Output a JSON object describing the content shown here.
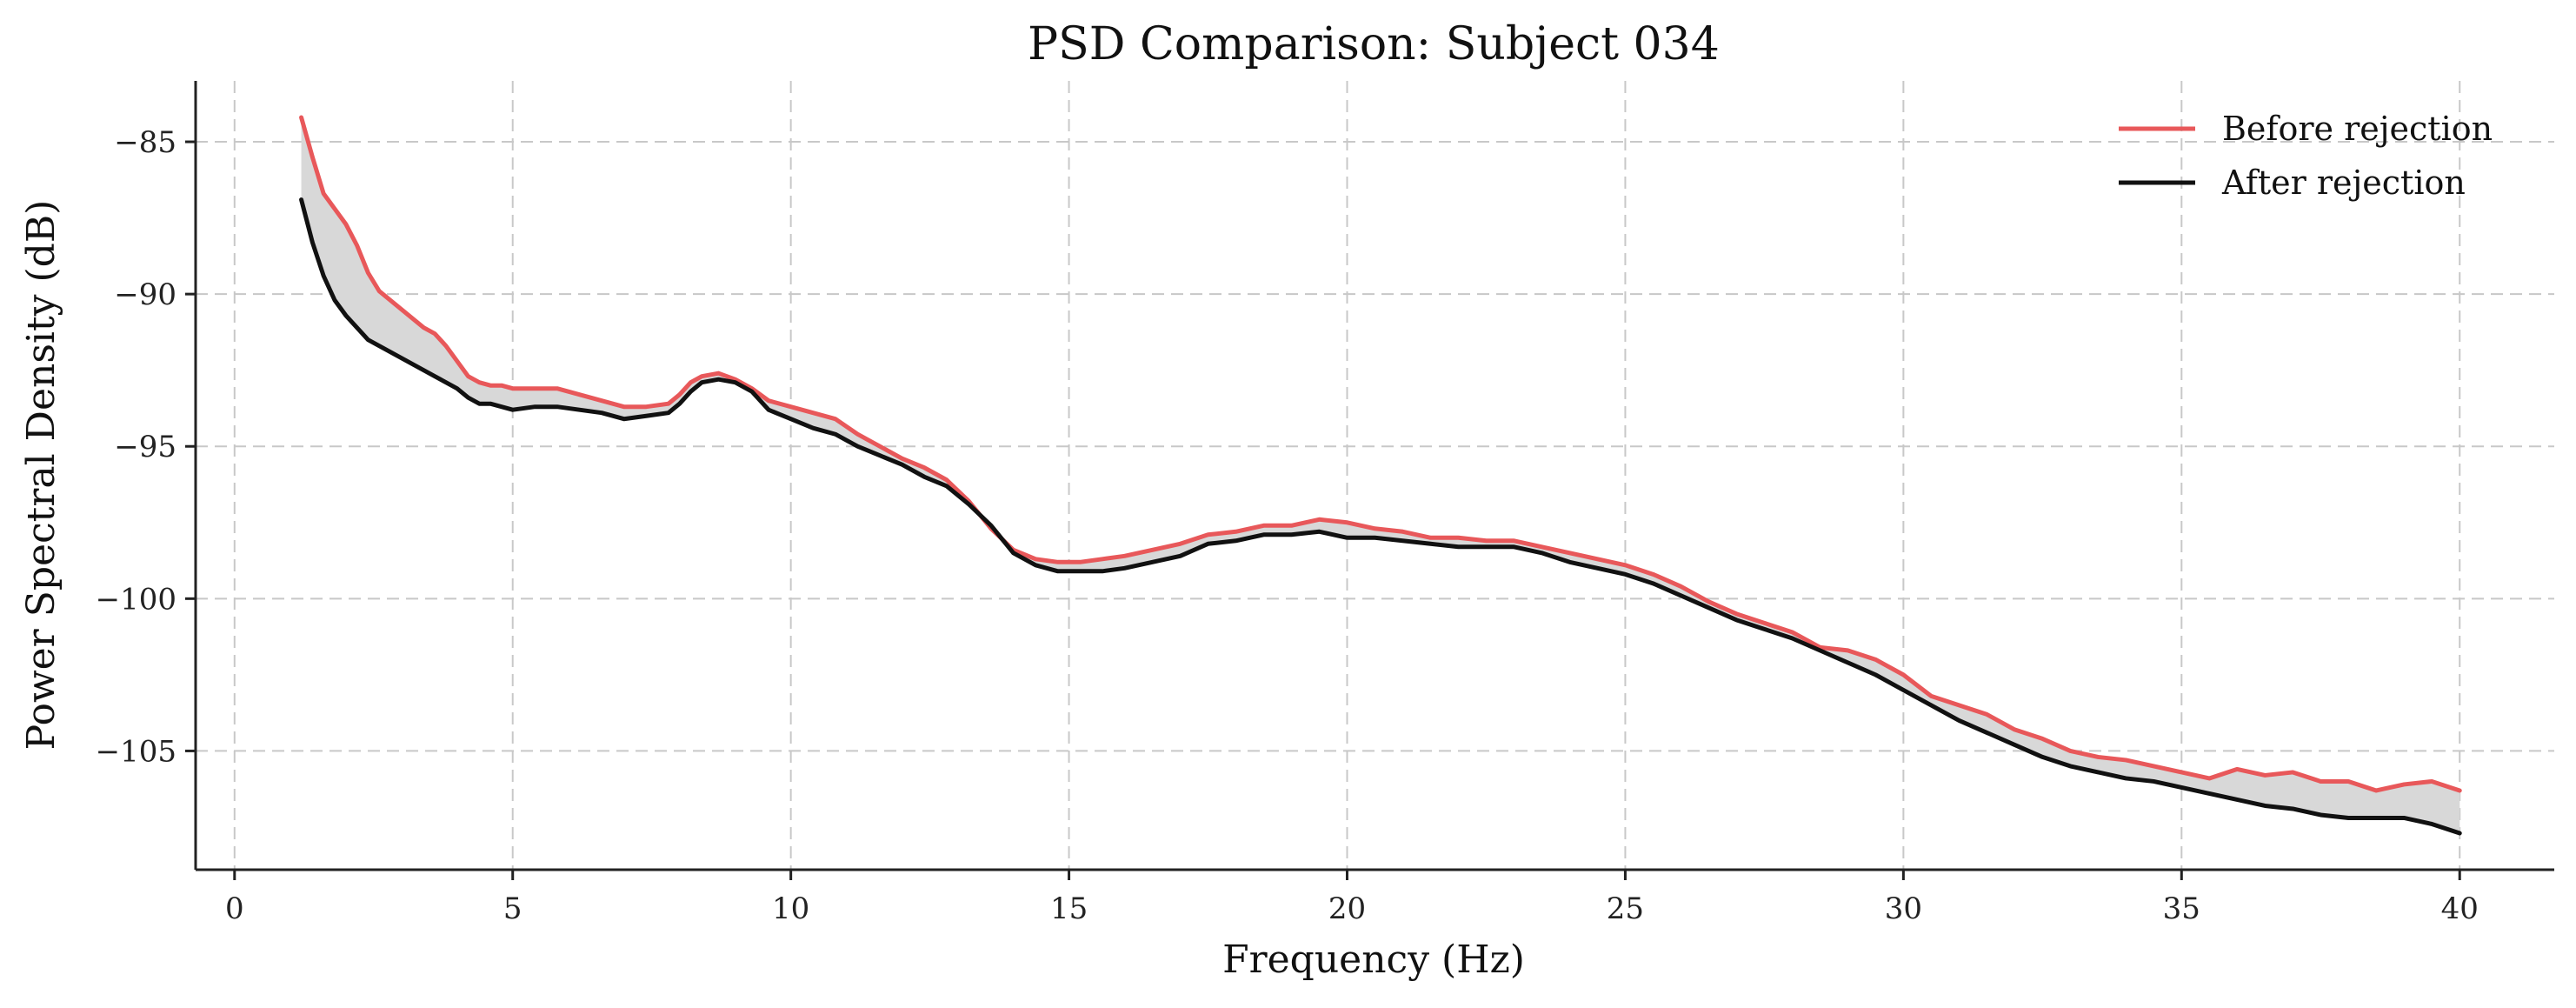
{
  "chart_data": {
    "type": "line",
    "title": "PSD Comparison: Subject 034",
    "xlabel": "Frequency (Hz)",
    "ylabel": "Power Spectral Density (dB)",
    "xlim": [
      -0.7,
      41.7
    ],
    "ylim": [
      -108.9,
      -83.0
    ],
    "xticks": [
      0,
      5,
      10,
      15,
      20,
      25,
      30,
      35,
      40
    ],
    "yticks": [
      -85,
      -90,
      -95,
      -100,
      -105
    ],
    "xtick_labels": [
      "0",
      "5",
      "10",
      "15",
      "20",
      "25",
      "30",
      "35",
      "40"
    ],
    "ytick_labels": [
      "−85",
      "−90",
      "−95",
      "−100",
      "−105"
    ],
    "grid": true,
    "fill_between_series": true,
    "fill_color": "#d8d8d8",
    "legend_position": "top-right",
    "series": [
      {
        "name": "Before rejection",
        "color": "#e8585a",
        "points": [
          [
            1.2,
            -84.2
          ],
          [
            1.4,
            -85.5
          ],
          [
            1.6,
            -86.7
          ],
          [
            1.8,
            -87.2
          ],
          [
            2.0,
            -87.7
          ],
          [
            2.2,
            -88.4
          ],
          [
            2.4,
            -89.3
          ],
          [
            2.6,
            -89.9
          ],
          [
            2.8,
            -90.2
          ],
          [
            3.0,
            -90.5
          ],
          [
            3.2,
            -90.8
          ],
          [
            3.4,
            -91.1
          ],
          [
            3.6,
            -91.3
          ],
          [
            3.8,
            -91.7
          ],
          [
            4.0,
            -92.2
          ],
          [
            4.2,
            -92.7
          ],
          [
            4.4,
            -92.9
          ],
          [
            4.6,
            -93.0
          ],
          [
            4.8,
            -93.0
          ],
          [
            5.0,
            -93.1
          ],
          [
            5.4,
            -93.1
          ],
          [
            5.8,
            -93.1
          ],
          [
            6.2,
            -93.3
          ],
          [
            6.6,
            -93.5
          ],
          [
            7.0,
            -93.7
          ],
          [
            7.4,
            -93.7
          ],
          [
            7.8,
            -93.6
          ],
          [
            8.0,
            -93.3
          ],
          [
            8.2,
            -92.9
          ],
          [
            8.4,
            -92.7
          ],
          [
            8.7,
            -92.6
          ],
          [
            9.0,
            -92.8
          ],
          [
            9.3,
            -93.1
          ],
          [
            9.6,
            -93.5
          ],
          [
            10.0,
            -93.7
          ],
          [
            10.4,
            -93.9
          ],
          [
            10.8,
            -94.1
          ],
          [
            11.2,
            -94.6
          ],
          [
            11.6,
            -95.0
          ],
          [
            12.0,
            -95.4
          ],
          [
            12.4,
            -95.7
          ],
          [
            12.8,
            -96.1
          ],
          [
            13.2,
            -96.8
          ],
          [
            13.6,
            -97.7
          ],
          [
            14.0,
            -98.4
          ],
          [
            14.4,
            -98.7
          ],
          [
            14.8,
            -98.8
          ],
          [
            15.2,
            -98.8
          ],
          [
            15.6,
            -98.7
          ],
          [
            16.0,
            -98.6
          ],
          [
            16.5,
            -98.4
          ],
          [
            17.0,
            -98.2
          ],
          [
            17.5,
            -97.9
          ],
          [
            18.0,
            -97.8
          ],
          [
            18.5,
            -97.6
          ],
          [
            19.0,
            -97.6
          ],
          [
            19.5,
            -97.4
          ],
          [
            20.0,
            -97.5
          ],
          [
            20.5,
            -97.7
          ],
          [
            21.0,
            -97.8
          ],
          [
            21.5,
            -98.0
          ],
          [
            22.0,
            -98.0
          ],
          [
            22.5,
            -98.1
          ],
          [
            23.0,
            -98.1
          ],
          [
            23.5,
            -98.3
          ],
          [
            24.0,
            -98.5
          ],
          [
            24.5,
            -98.7
          ],
          [
            25.0,
            -98.9
          ],
          [
            25.5,
            -99.2
          ],
          [
            26.0,
            -99.6
          ],
          [
            26.5,
            -100.1
          ],
          [
            27.0,
            -100.5
          ],
          [
            27.5,
            -100.8
          ],
          [
            28.0,
            -101.1
          ],
          [
            28.5,
            -101.6
          ],
          [
            29.0,
            -101.7
          ],
          [
            29.5,
            -102.0
          ],
          [
            30.0,
            -102.5
          ],
          [
            30.5,
            -103.2
          ],
          [
            31.0,
            -103.5
          ],
          [
            31.5,
            -103.8
          ],
          [
            32.0,
            -104.3
          ],
          [
            32.5,
            -104.6
          ],
          [
            33.0,
            -105.0
          ],
          [
            33.5,
            -105.2
          ],
          [
            34.0,
            -105.3
          ],
          [
            34.5,
            -105.5
          ],
          [
            35.0,
            -105.7
          ],
          [
            35.5,
            -105.9
          ],
          [
            36.0,
            -105.6
          ],
          [
            36.5,
            -105.8
          ],
          [
            37.0,
            -105.7
          ],
          [
            37.5,
            -106.0
          ],
          [
            38.0,
            -106.0
          ],
          [
            38.5,
            -106.3
          ],
          [
            39.0,
            -106.1
          ],
          [
            39.5,
            -106.0
          ],
          [
            40.0,
            -106.3
          ]
        ]
      },
      {
        "name": "After rejection",
        "color": "#111111",
        "points": [
          [
            1.2,
            -86.9
          ],
          [
            1.4,
            -88.3
          ],
          [
            1.6,
            -89.4
          ],
          [
            1.8,
            -90.2
          ],
          [
            2.0,
            -90.7
          ],
          [
            2.2,
            -91.1
          ],
          [
            2.4,
            -91.5
          ],
          [
            2.6,
            -91.7
          ],
          [
            2.8,
            -91.9
          ],
          [
            3.0,
            -92.1
          ],
          [
            3.2,
            -92.3
          ],
          [
            3.4,
            -92.5
          ],
          [
            3.6,
            -92.7
          ],
          [
            3.8,
            -92.9
          ],
          [
            4.0,
            -93.1
          ],
          [
            4.2,
            -93.4
          ],
          [
            4.4,
            -93.6
          ],
          [
            4.6,
            -93.6
          ],
          [
            4.8,
            -93.7
          ],
          [
            5.0,
            -93.8
          ],
          [
            5.4,
            -93.7
          ],
          [
            5.8,
            -93.7
          ],
          [
            6.2,
            -93.8
          ],
          [
            6.6,
            -93.9
          ],
          [
            7.0,
            -94.1
          ],
          [
            7.4,
            -94.0
          ],
          [
            7.8,
            -93.9
          ],
          [
            8.0,
            -93.6
          ],
          [
            8.2,
            -93.2
          ],
          [
            8.4,
            -92.9
          ],
          [
            8.7,
            -92.8
          ],
          [
            9.0,
            -92.9
          ],
          [
            9.3,
            -93.2
          ],
          [
            9.6,
            -93.8
          ],
          [
            10.0,
            -94.1
          ],
          [
            10.4,
            -94.4
          ],
          [
            10.8,
            -94.6
          ],
          [
            11.2,
            -95.0
          ],
          [
            11.6,
            -95.3
          ],
          [
            12.0,
            -95.6
          ],
          [
            12.4,
            -96.0
          ],
          [
            12.8,
            -96.3
          ],
          [
            13.2,
            -96.9
          ],
          [
            13.6,
            -97.6
          ],
          [
            14.0,
            -98.5
          ],
          [
            14.4,
            -98.9
          ],
          [
            14.8,
            -99.1
          ],
          [
            15.2,
            -99.1
          ],
          [
            15.6,
            -99.1
          ],
          [
            16.0,
            -99.0
          ],
          [
            16.5,
            -98.8
          ],
          [
            17.0,
            -98.6
          ],
          [
            17.5,
            -98.2
          ],
          [
            18.0,
            -98.1
          ],
          [
            18.5,
            -97.9
          ],
          [
            19.0,
            -97.9
          ],
          [
            19.5,
            -97.8
          ],
          [
            20.0,
            -98.0
          ],
          [
            20.5,
            -98.0
          ],
          [
            21.0,
            -98.1
          ],
          [
            21.5,
            -98.2
          ],
          [
            22.0,
            -98.3
          ],
          [
            22.5,
            -98.3
          ],
          [
            23.0,
            -98.3
          ],
          [
            23.5,
            -98.5
          ],
          [
            24.0,
            -98.8
          ],
          [
            24.5,
            -99.0
          ],
          [
            25.0,
            -99.2
          ],
          [
            25.5,
            -99.5
          ],
          [
            26.0,
            -99.9
          ],
          [
            26.5,
            -100.3
          ],
          [
            27.0,
            -100.7
          ],
          [
            27.5,
            -101.0
          ],
          [
            28.0,
            -101.3
          ],
          [
            28.5,
            -101.7
          ],
          [
            29.0,
            -102.1
          ],
          [
            29.5,
            -102.5
          ],
          [
            30.0,
            -103.0
          ],
          [
            30.5,
            -103.5
          ],
          [
            31.0,
            -104.0
          ],
          [
            31.5,
            -104.4
          ],
          [
            32.0,
            -104.8
          ],
          [
            32.5,
            -105.2
          ],
          [
            33.0,
            -105.5
          ],
          [
            33.5,
            -105.7
          ],
          [
            34.0,
            -105.9
          ],
          [
            34.5,
            -106.0
          ],
          [
            35.0,
            -106.2
          ],
          [
            35.5,
            -106.4
          ],
          [
            36.0,
            -106.6
          ],
          [
            36.5,
            -106.8
          ],
          [
            37.0,
            -106.9
          ],
          [
            37.5,
            -107.1
          ],
          [
            38.0,
            -107.2
          ],
          [
            38.5,
            -107.2
          ],
          [
            39.0,
            -107.2
          ],
          [
            39.5,
            -107.4
          ],
          [
            40.0,
            -107.7
          ]
        ]
      }
    ]
  }
}
